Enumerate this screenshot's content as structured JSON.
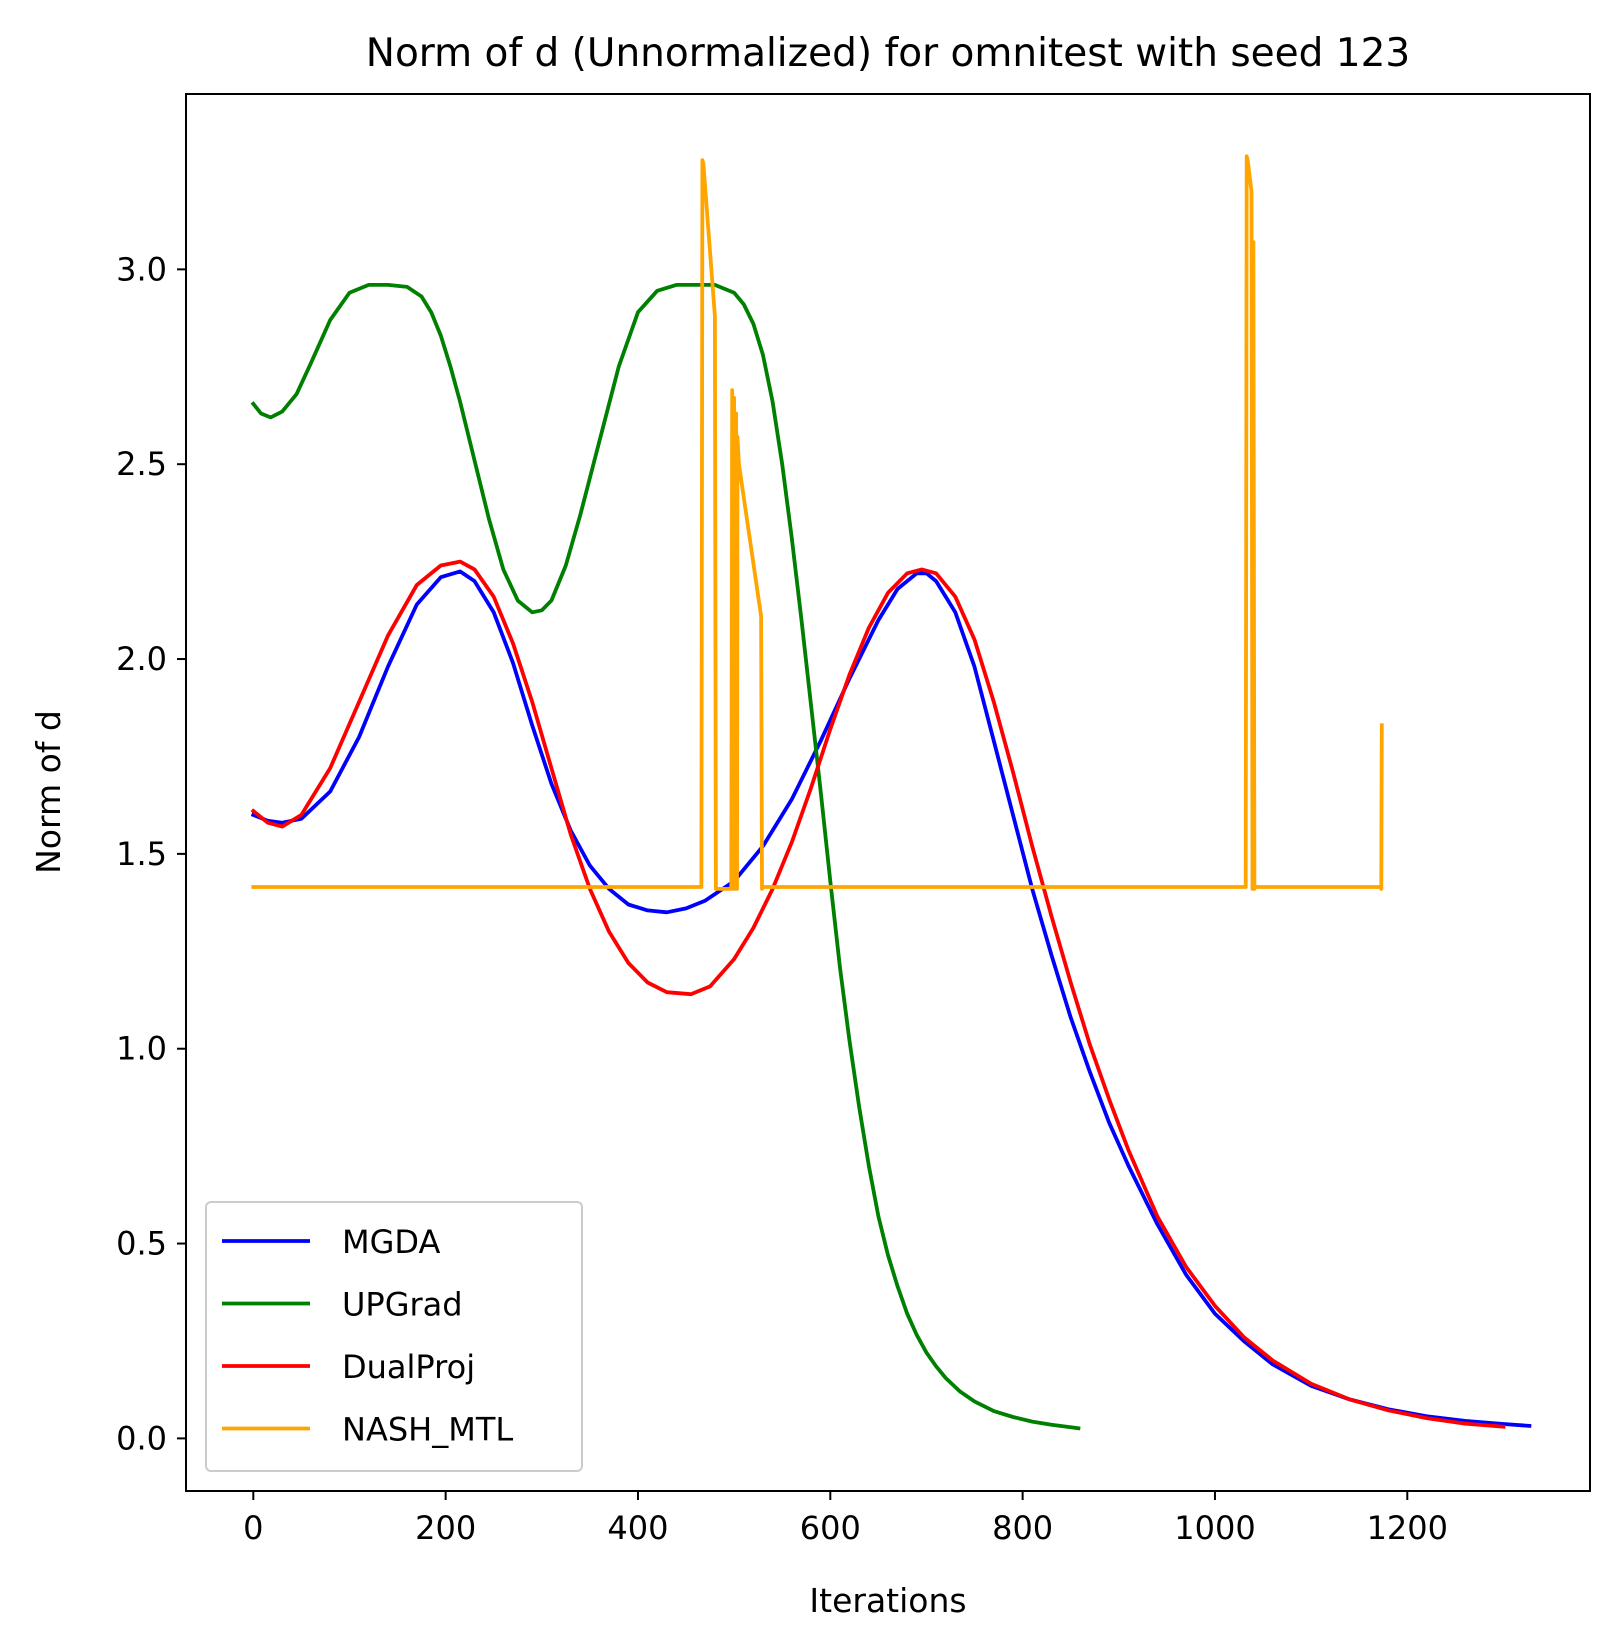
{
  "chart_data": {
    "type": "line",
    "title": "Norm of d (Unnormalized) for omnitest with seed 123",
    "xlabel": "Iterations",
    "ylabel": "Norm of d",
    "xlim": [
      -70,
      1390
    ],
    "ylim": [
      -0.135,
      3.45
    ],
    "xticks": [
      0,
      200,
      400,
      600,
      800,
      1000,
      1200
    ],
    "yticks": [
      0.0,
      0.5,
      1.0,
      1.5,
      2.0,
      2.5,
      3.0
    ],
    "xtick_labels": [
      "0",
      "200",
      "400",
      "600",
      "800",
      "1000",
      "1200"
    ],
    "ytick_labels": [
      "0.0",
      "0.5",
      "1.0",
      "1.5",
      "2.0",
      "2.5",
      "3.0"
    ],
    "grid": false,
    "legend_position": "lower-left",
    "series": [
      {
        "name": "MGDA",
        "color": "#0000ff",
        "x": [
          0,
          15,
          30,
          50,
          80,
          110,
          140,
          170,
          195,
          215,
          230,
          250,
          270,
          290,
          310,
          330,
          350,
          370,
          390,
          410,
          430,
          450,
          470,
          500,
          530,
          560,
          590,
          620,
          650,
          670,
          690,
          700,
          710,
          730,
          750,
          770,
          790,
          810,
          830,
          850,
          870,
          890,
          910,
          940,
          970,
          1000,
          1030,
          1060,
          1100,
          1140,
          1180,
          1220,
          1260,
          1300,
          1327
        ],
        "y": [
          1.6,
          1.585,
          1.58,
          1.59,
          1.66,
          1.8,
          1.98,
          2.14,
          2.21,
          2.225,
          2.2,
          2.12,
          1.99,
          1.83,
          1.68,
          1.56,
          1.47,
          1.41,
          1.37,
          1.355,
          1.35,
          1.36,
          1.38,
          1.43,
          1.52,
          1.64,
          1.79,
          1.95,
          2.1,
          2.18,
          2.22,
          2.22,
          2.2,
          2.12,
          1.98,
          1.79,
          1.6,
          1.41,
          1.24,
          1.08,
          0.94,
          0.81,
          0.7,
          0.55,
          0.42,
          0.32,
          0.25,
          0.19,
          0.135,
          0.1,
          0.075,
          0.057,
          0.045,
          0.037,
          0.032
        ]
      },
      {
        "name": "UPGrad",
        "color": "#008000",
        "x": [
          0,
          8,
          18,
          30,
          45,
          60,
          80,
          100,
          120,
          140,
          160,
          175,
          185,
          195,
          205,
          215,
          230,
          245,
          260,
          275,
          290,
          300,
          310,
          325,
          340,
          360,
          380,
          400,
          420,
          440,
          460,
          480,
          500,
          510,
          520,
          530,
          540,
          550,
          560,
          570,
          580,
          590,
          600,
          610,
          620,
          630,
          640,
          650,
          660,
          670,
          680,
          690,
          700,
          710,
          720,
          735,
          750,
          770,
          790,
          810,
          830,
          858
        ],
        "y": [
          2.655,
          2.63,
          2.62,
          2.635,
          2.68,
          2.76,
          2.87,
          2.94,
          2.96,
          2.96,
          2.955,
          2.93,
          2.89,
          2.83,
          2.75,
          2.66,
          2.51,
          2.36,
          2.23,
          2.15,
          2.12,
          2.125,
          2.15,
          2.24,
          2.37,
          2.56,
          2.75,
          2.89,
          2.945,
          2.96,
          2.96,
          2.96,
          2.94,
          2.91,
          2.86,
          2.78,
          2.66,
          2.5,
          2.31,
          2.1,
          1.88,
          1.66,
          1.43,
          1.21,
          1.02,
          0.85,
          0.7,
          0.57,
          0.47,
          0.39,
          0.32,
          0.265,
          0.22,
          0.185,
          0.155,
          0.12,
          0.095,
          0.07,
          0.055,
          0.043,
          0.035,
          0.026
        ]
      },
      {
        "name": "DualProj",
        "color": "#ff0000",
        "x": [
          0,
          15,
          30,
          50,
          80,
          110,
          140,
          170,
          195,
          215,
          230,
          250,
          270,
          290,
          310,
          330,
          350,
          370,
          390,
          410,
          430,
          455,
          475,
          500,
          520,
          540,
          560,
          580,
          600,
          620,
          640,
          660,
          680,
          695,
          710,
          730,
          750,
          770,
          790,
          810,
          830,
          850,
          870,
          890,
          910,
          940,
          970,
          1000,
          1030,
          1060,
          1100,
          1140,
          1180,
          1220,
          1260,
          1300
        ],
        "y": [
          1.61,
          1.58,
          1.57,
          1.6,
          1.72,
          1.89,
          2.06,
          2.19,
          2.24,
          2.25,
          2.23,
          2.16,
          2.04,
          1.89,
          1.72,
          1.55,
          1.41,
          1.3,
          1.22,
          1.17,
          1.145,
          1.14,
          1.16,
          1.23,
          1.31,
          1.41,
          1.53,
          1.67,
          1.82,
          1.96,
          2.08,
          2.17,
          2.22,
          2.23,
          2.22,
          2.16,
          2.05,
          1.89,
          1.71,
          1.52,
          1.34,
          1.17,
          1.01,
          0.87,
          0.74,
          0.57,
          0.44,
          0.34,
          0.26,
          0.2,
          0.14,
          0.1,
          0.072,
          0.052,
          0.038,
          0.03
        ]
      },
      {
        "name": "NASH_MTL",
        "color": "#ffa500",
        "x": [
          0,
          466,
          467,
          468,
          480,
          481,
          482,
          497,
          498,
          499,
          500,
          501,
          502,
          503,
          503.5,
          505,
          528,
          529,
          530,
          1032,
          1033,
          1034,
          1038,
          1039,
          1040,
          1041,
          1042,
          1172,
          1173,
          1173.5
        ],
        "y": [
          1.415,
          1.415,
          3.28,
          3.27,
          2.88,
          1.41,
          1.41,
          1.41,
          2.69,
          1.41,
          2.67,
          1.41,
          2.63,
          1.41,
          2.57,
          2.5,
          2.11,
          1.41,
          1.415,
          1.415,
          3.29,
          3.28,
          3.2,
          1.41,
          3.07,
          1.41,
          1.415,
          1.415,
          1.41,
          1.83
        ]
      }
    ]
  }
}
